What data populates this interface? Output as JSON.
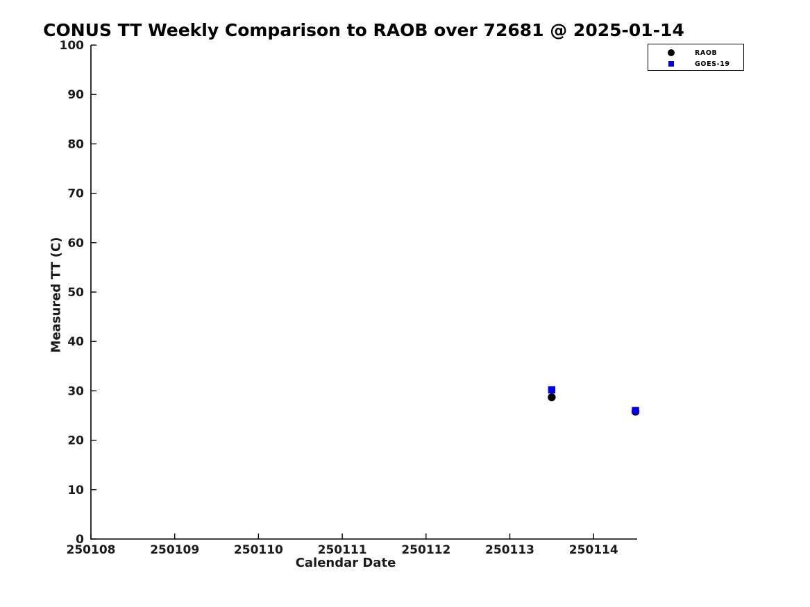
{
  "chart_data": {
    "type": "scatter",
    "title": "CONUS TT Weekly Comparison to RAOB over 72681 @ 2025-01-14",
    "xlabel": "Calendar Date",
    "ylabel": "Measured TT (C)",
    "xlim": [
      250108,
      250114.52
    ],
    "ylim": [
      0,
      100
    ],
    "x_ticks": [
      250108,
      250109,
      250110,
      250111,
      250112,
      250113,
      250114
    ],
    "y_ticks": [
      0,
      10,
      20,
      30,
      40,
      50,
      60,
      70,
      80,
      90,
      100
    ],
    "grid": false,
    "legend_position": "outside-top-right",
    "series": [
      {
        "name": "RAOB",
        "marker": "circle",
        "color": "#000000",
        "x": [
          250113.5,
          250114.5
        ],
        "y": [
          28.7,
          25.8
        ]
      },
      {
        "name": "GOES-19",
        "marker": "square",
        "color": "#0000ee",
        "x": [
          250113.5,
          250114.5
        ],
        "y": [
          30.2,
          26.0
        ]
      }
    ]
  },
  "colors": {
    "axis": "#000000",
    "tick_text": "#1a1a1a"
  }
}
